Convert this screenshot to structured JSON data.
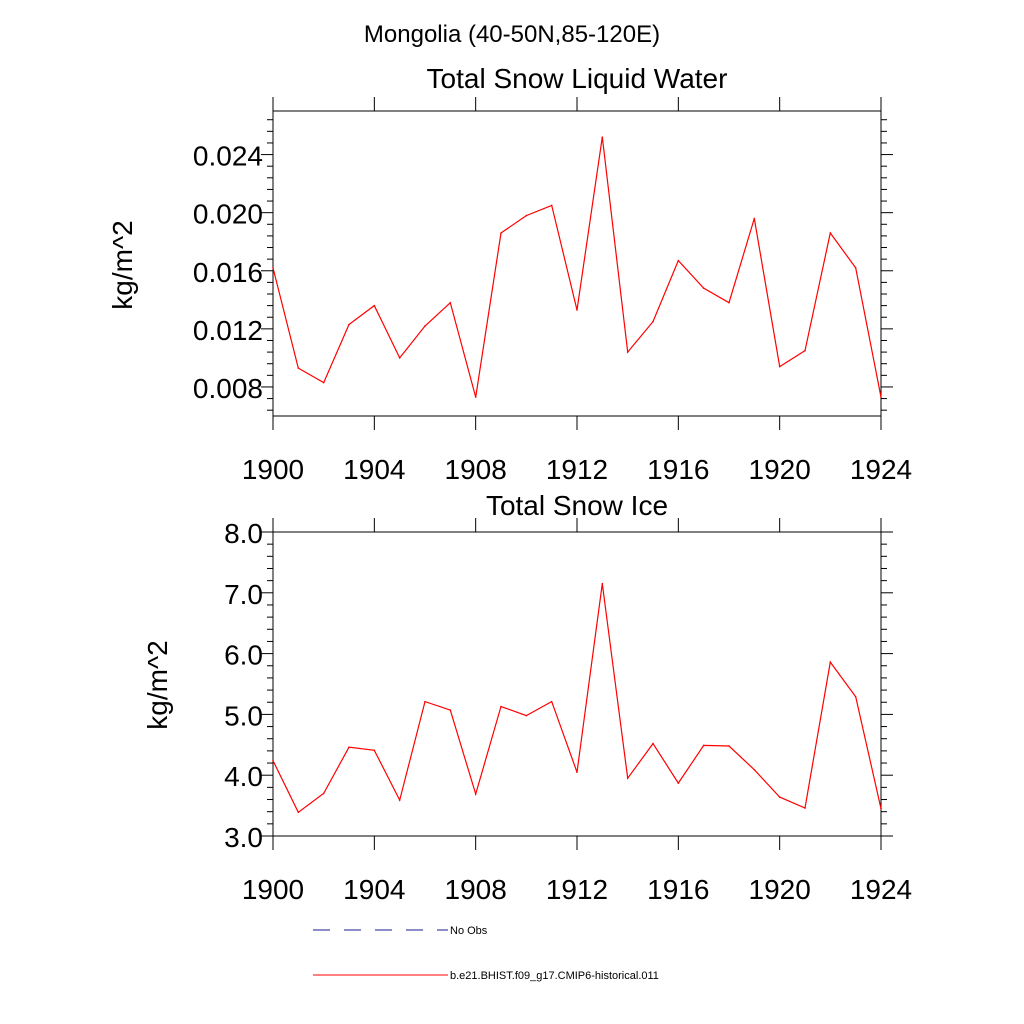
{
  "figure": {
    "title": "Mongolia (40-50N,85-120E)"
  },
  "chart_data": [
    {
      "type": "line",
      "title": "Total Snow Liquid Water",
      "xlabel": "",
      "ylabel": "kg/m^2",
      "xlim": [
        1900,
        1924
      ],
      "ylim": [
        0.006,
        0.027
      ],
      "xticks": [
        1900,
        1904,
        1908,
        1912,
        1916,
        1920,
        1924
      ],
      "xtick_labels": [
        "1900",
        "1904",
        "1908",
        "1912",
        "1916",
        "1920",
        "1924"
      ],
      "yticks": [
        0.008,
        0.012,
        0.016,
        0.02,
        0.024
      ],
      "ytick_labels": [
        "0.008",
        "0.012",
        "0.016",
        "0.020",
        "0.024"
      ],
      "series": [
        {
          "name": "b.e21.BHIST.f09_g17.CMIP6-historical.011",
          "color": "#ff0000",
          "x": [
            1900,
            1901,
            1902,
            1903,
            1904,
            1905,
            1906,
            1907,
            1908,
            1909,
            1910,
            1911,
            1912,
            1913,
            1914,
            1915,
            1916,
            1917,
            1918,
            1919,
            1920,
            1921,
            1922,
            1923,
            1924
          ],
          "values": [
            0.0162,
            0.0093,
            0.0083,
            0.0123,
            0.0136,
            0.01,
            0.0122,
            0.0138,
            0.0073,
            0.0186,
            0.0198,
            0.0205,
            0.0133,
            0.0252,
            0.0104,
            0.0125,
            0.0167,
            0.0148,
            0.0138,
            0.0196,
            0.0094,
            0.0105,
            0.0186,
            0.0162,
            0.0073
          ]
        }
      ]
    },
    {
      "type": "line",
      "title": "Total Snow Ice",
      "xlabel": "",
      "ylabel": "kg/m^2",
      "xlim": [
        1900,
        1924
      ],
      "ylim": [
        3.0,
        8.0
      ],
      "xticks": [
        1900,
        1904,
        1908,
        1912,
        1916,
        1920,
        1924
      ],
      "xtick_labels": [
        "1900",
        "1904",
        "1908",
        "1912",
        "1916",
        "1920",
        "1924"
      ],
      "yticks": [
        3.0,
        4.0,
        5.0,
        6.0,
        7.0,
        8.0
      ],
      "ytick_labels": [
        "3.0",
        "4.0",
        "5.0",
        "6.0",
        "7.0",
        "8.0"
      ],
      "series": [
        {
          "name": "b.e21.BHIST.f09_g17.CMIP6-historical.011",
          "color": "#ff0000",
          "x": [
            1900,
            1901,
            1902,
            1903,
            1904,
            1905,
            1906,
            1907,
            1908,
            1909,
            1910,
            1911,
            1912,
            1913,
            1914,
            1915,
            1916,
            1917,
            1918,
            1919,
            1920,
            1921,
            1922,
            1923,
            1924
          ],
          "values": [
            4.24,
            3.39,
            3.7,
            4.46,
            4.41,
            3.59,
            5.21,
            5.07,
            3.69,
            5.13,
            4.98,
            5.21,
            4.05,
            7.15,
            3.95,
            4.52,
            3.87,
            4.49,
            4.48,
            4.09,
            3.64,
            3.46,
            5.86,
            5.29,
            3.45
          ]
        }
      ]
    }
  ],
  "legend": {
    "placement": "bottom",
    "entries": [
      {
        "label": "No Obs",
        "color": "#1a1a8c",
        "style": "dashed"
      },
      {
        "label": "b.e21.BHIST.f09_g17.CMIP6-historical.011",
        "color": "#ff0000",
        "style": "solid"
      }
    ]
  }
}
